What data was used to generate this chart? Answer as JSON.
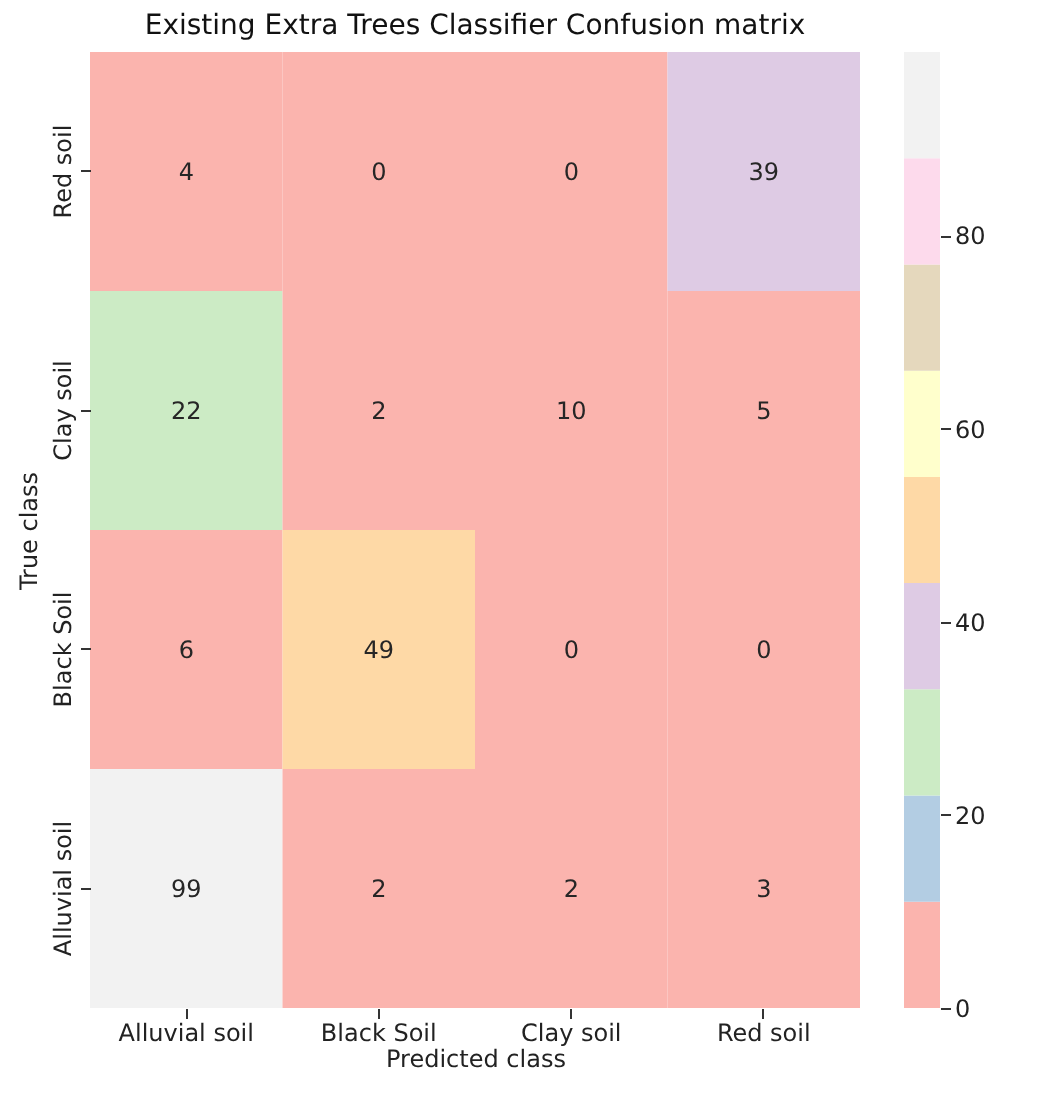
{
  "chart_data": {
    "type": "heatmap",
    "title": "Existing Extra Trees Classifier Confusion matrix",
    "xlabel": "Predicted class",
    "ylabel": "True class",
    "categories": [
      "Alluvial soil",
      "Black Soil",
      "Clay soil",
      "Red soil"
    ],
    "y_categories": [
      "Red soil",
      "Clay soil",
      "Black Soil",
      "Alluvial soil"
    ],
    "cells": [
      [
        4,
        0,
        0,
        39
      ],
      [
        22,
        2,
        10,
        5
      ],
      [
        6,
        49,
        0,
        0
      ],
      [
        99,
        2,
        2,
        3
      ]
    ],
    "data_labels": true,
    "clim": [
      0,
      99
    ],
    "cticks": [
      0,
      20,
      40,
      60,
      80
    ],
    "colors": [
      "#fbb4ae",
      "#b3cde3",
      "#ccebc5",
      "#decbe4",
      "#fed9a6",
      "#ffffcc",
      "#e5d8bd",
      "#fddaec",
      "#f2f2f2"
    ]
  }
}
